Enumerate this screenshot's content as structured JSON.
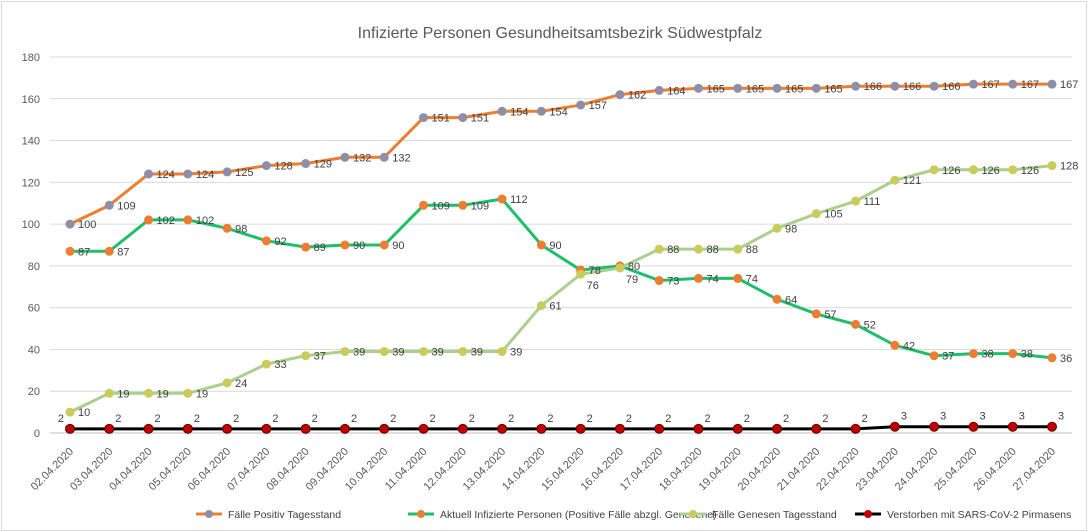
{
  "chart_data": {
    "type": "line",
    "title": "Infizierte Personen Gesundheitsamtsbezirk Südwestpfalz",
    "xlabel": "",
    "ylabel": "",
    "ylim": [
      0,
      180
    ],
    "yticks": [
      0,
      20,
      40,
      60,
      80,
      100,
      120,
      140,
      160,
      180
    ],
    "grid": true,
    "legend": "bottom",
    "x": [
      "02.04.2020",
      "03.04.2020",
      "04.04.2020",
      "05.04.2020",
      "06.04.2020",
      "07.04.2020",
      "08.04.2020",
      "09.04.2020",
      "10.04.2020",
      "11.04.2020",
      "12.04.2020",
      "13.04.2020",
      "14.04.2020",
      "15.04.2020",
      "16.04.2020",
      "17.04.2020",
      "18.04.2020",
      "19.04.2020",
      "20.04.2020",
      "21.04.2020",
      "22.04.2020",
      "23.04.2020",
      "24.04.2020",
      "25.04.2020",
      "26.04.2020",
      "27.04.2020"
    ],
    "series": [
      {
        "name": "Fälle Positiv Tagesstand",
        "color": "#ED7D31",
        "marker": "#8E8EA8",
        "values": [
          100,
          109,
          124,
          124,
          125,
          128,
          129,
          132,
          132,
          151,
          151,
          154,
          154,
          157,
          162,
          164,
          165,
          165,
          165,
          165,
          166,
          166,
          166,
          167,
          167,
          167
        ]
      },
      {
        "name": "Aktuell Infizierte Personen (Positive Fälle abzgl. Genesene)",
        "color": "#1FBF6A",
        "marker": "#ED7D31",
        "values": [
          87,
          87,
          102,
          102,
          98,
          92,
          89,
          90,
          90,
          109,
          109,
          112,
          90,
          78,
          80,
          73,
          74,
          74,
          64,
          57,
          52,
          42,
          37,
          38,
          38,
          36
        ]
      },
      {
        "name": "Fälle Genesen Tagesstand",
        "color": "#A9D08E",
        "marker": "#C9CC5A",
        "values": [
          10,
          19,
          19,
          19,
          24,
          33,
          37,
          39,
          39,
          39,
          39,
          39,
          61,
          76,
          79,
          88,
          88,
          88,
          98,
          105,
          111,
          121,
          126,
          126,
          126,
          128
        ]
      },
      {
        "name": "Verstorben mit SARS-CoV-2 Pirmasens",
        "color": "#000000",
        "marker": "#C00000",
        "values": [
          2,
          2,
          2,
          2,
          2,
          2,
          2,
          2,
          2,
          2,
          2,
          2,
          2,
          2,
          2,
          2,
          2,
          2,
          2,
          2,
          2,
          3,
          3,
          3,
          3,
          3
        ]
      }
    ]
  }
}
